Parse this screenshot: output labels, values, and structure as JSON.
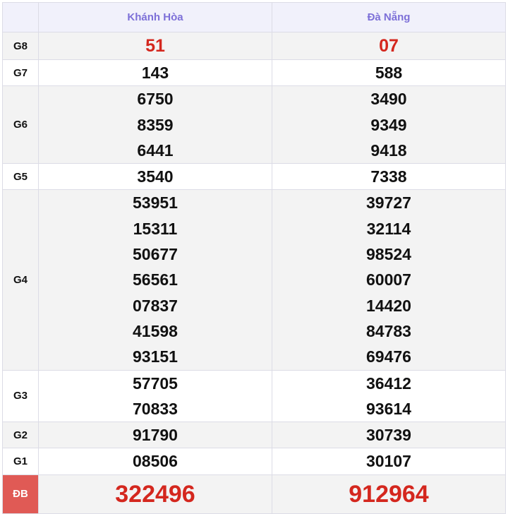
{
  "columns": [
    "Khánh Hòa",
    "Đà Nẵng"
  ],
  "rows": [
    {
      "label": "G8",
      "values": [
        [
          "51"
        ],
        [
          "07"
        ]
      ]
    },
    {
      "label": "G7",
      "values": [
        [
          "143"
        ],
        [
          "588"
        ]
      ]
    },
    {
      "label": "G6",
      "values": [
        [
          "6750",
          "8359",
          "6441"
        ],
        [
          "3490",
          "9349",
          "9418"
        ]
      ]
    },
    {
      "label": "G5",
      "values": [
        [
          "3540"
        ],
        [
          "7338"
        ]
      ]
    },
    {
      "label": "G4",
      "values": [
        [
          "53951",
          "15311",
          "50677",
          "56561",
          "07837",
          "41598",
          "93151"
        ],
        [
          "39727",
          "32114",
          "98524",
          "60007",
          "14420",
          "84783",
          "69476"
        ]
      ]
    },
    {
      "label": "G3",
      "values": [
        [
          "57705",
          "70833"
        ],
        [
          "36412",
          "93614"
        ]
      ]
    },
    {
      "label": "G2",
      "values": [
        [
          "91790"
        ],
        [
          "30739"
        ]
      ]
    },
    {
      "label": "G1",
      "values": [
        [
          "08506"
        ],
        [
          "30107"
        ]
      ]
    },
    {
      "label": "ĐB",
      "values": [
        [
          "322496"
        ],
        [
          "912964"
        ]
      ]
    }
  ],
  "colors": {
    "header_text": "#7d70d8",
    "highlight": "#d4271e",
    "db_label_bg": "#e05a55"
  }
}
